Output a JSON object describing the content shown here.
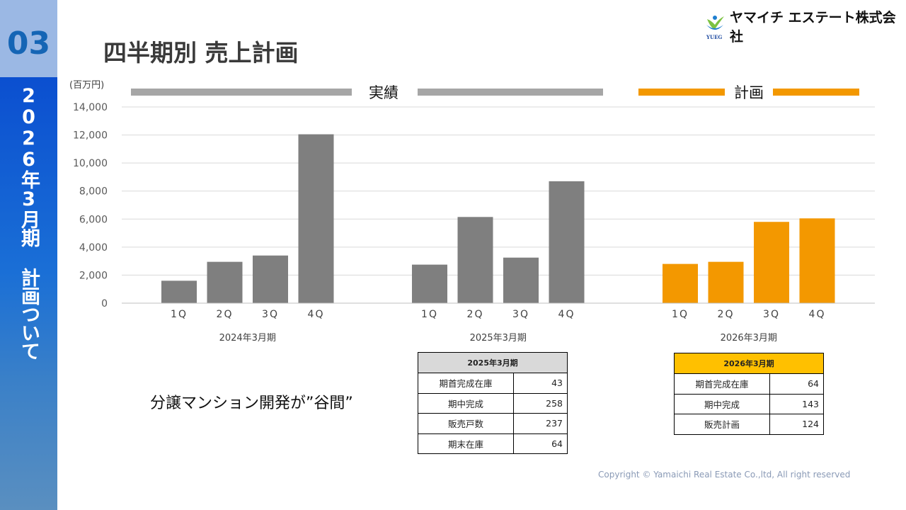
{
  "sidebar": {
    "section_number": "03",
    "vertical_title": "2026年3月期 計画ついて"
  },
  "header": {
    "title": "四半期別 売上計画",
    "company_name": "ヤマイチ エステート株式会社",
    "logo_text": "YUEG"
  },
  "chart_data": {
    "type": "bar",
    "ylabel": "(百万円)",
    "ylim": [
      0,
      14000
    ],
    "yticks": [
      "0",
      "2,000",
      "4,000",
      "6,000",
      "8,000",
      "10,000",
      "12,000",
      "14,000"
    ],
    "grid": true,
    "bracket_labels": [
      {
        "label": "実績",
        "color": "#a6a6a6"
      },
      {
        "label": "計画",
        "color": "#f39800"
      }
    ],
    "groups": [
      {
        "name": "2024年3月期",
        "categories": [
          "1Q",
          "2Q",
          "3Q",
          "4Q"
        ],
        "values": [
          1600,
          2950,
          3400,
          12050
        ],
        "color": "#7f7f7f"
      },
      {
        "name": "2025年3月期",
        "categories": [
          "1Q",
          "2Q",
          "3Q",
          "4Q"
        ],
        "values": [
          2750,
          6150,
          3250,
          8700
        ],
        "color": "#7f7f7f"
      },
      {
        "name": "2026年3月期",
        "categories": [
          "1Q",
          "2Q",
          "3Q",
          "4Q"
        ],
        "values": [
          2800,
          2950,
          5800,
          6050
        ],
        "color": "#f39800"
      }
    ]
  },
  "catchphrase": "分譲マンション開発が”谷間”",
  "table_2025": {
    "title": "2025年3月期",
    "header_color": "#d9d9d9",
    "rows": [
      {
        "label": "期首完成在庫",
        "value": "43"
      },
      {
        "label": "期中完成",
        "value": "258"
      },
      {
        "label": "販売戸数",
        "value": "237"
      },
      {
        "label": "期末在庫",
        "value": "64"
      }
    ]
  },
  "table_2026": {
    "title": "2026年3月期",
    "header_color": "#ffc000",
    "rows": [
      {
        "label": "期首完成在庫",
        "value": "64"
      },
      {
        "label": "期中完成",
        "value": "143"
      },
      {
        "label": "販売計画",
        "value": "124"
      }
    ]
  },
  "footer": {
    "copyright": "Copyright © Yamaichi Real Estate Co.,ltd, All right reserved"
  }
}
